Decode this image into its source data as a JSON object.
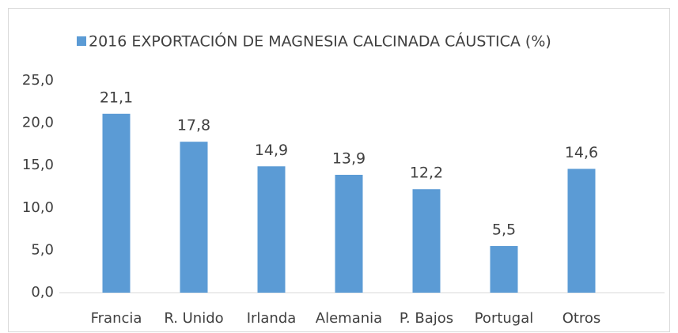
{
  "chart_data": {
    "type": "bar",
    "legend": "2016 EXPORTACIÓN DE MAGNESIA CALCINADA CÁUSTICA (%)",
    "color": "#5b9bd5",
    "categories": [
      "Francia",
      "R. Unido",
      "Irlanda",
      "Alemania",
      "P. Bajos",
      "Portugal",
      "Otros"
    ],
    "values": [
      21.1,
      17.8,
      14.9,
      13.9,
      12.2,
      5.5,
      14.6
    ],
    "value_labels": [
      "21,1",
      "17,8",
      "14,9",
      "13,9",
      "12,2",
      "5,5",
      "14,6"
    ],
    "ylim": [
      0,
      25
    ],
    "yticks": [
      {
        "value": 0,
        "label": "0,0"
      },
      {
        "value": 5,
        "label": "5,0"
      },
      {
        "value": 10,
        "label": "10,0"
      },
      {
        "value": 15,
        "label": "15,0"
      },
      {
        "value": 20,
        "label": "20,0"
      },
      {
        "value": 25,
        "label": "25,0"
      }
    ],
    "grid": false
  }
}
